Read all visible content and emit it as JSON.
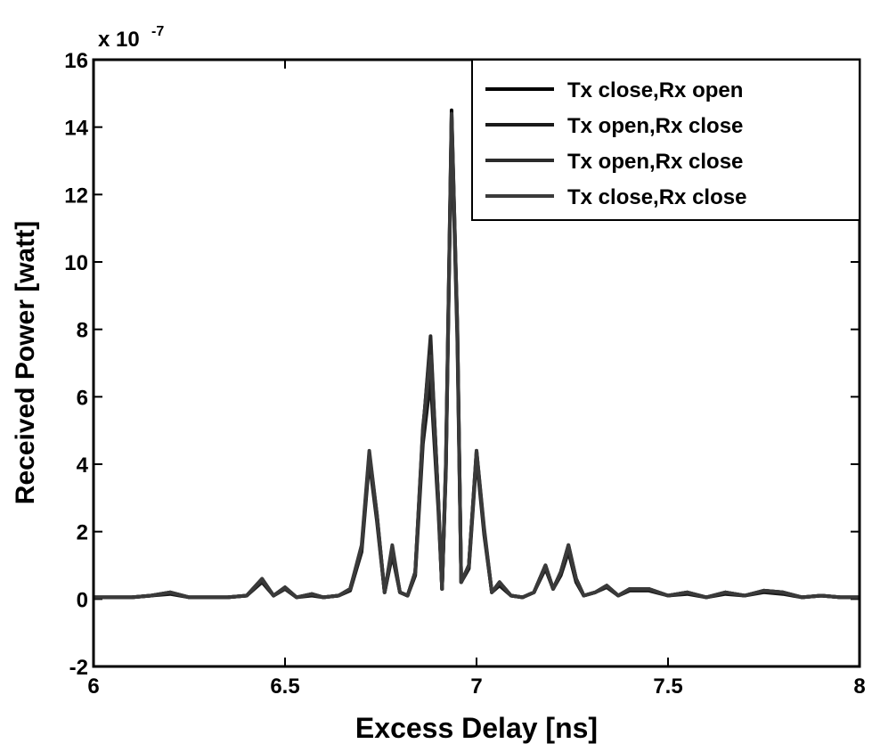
{
  "chart_data": {
    "type": "line",
    "xlabel": "Excess Delay [ns]",
    "ylabel": "Received Power [watt]",
    "y_multiplier": "x 10",
    "y_exponent": "-7",
    "xlim": [
      6,
      8
    ],
    "xticks": [
      6,
      6.5,
      7,
      7.5,
      8
    ],
    "ylim": [
      -2,
      16
    ],
    "yticks": [
      -2,
      0,
      2,
      4,
      6,
      8,
      10,
      12,
      14,
      16
    ],
    "legend": "upper right",
    "x": [
      6.0,
      6.1,
      6.15,
      6.2,
      6.25,
      6.3,
      6.35,
      6.4,
      6.44,
      6.47,
      6.5,
      6.53,
      6.57,
      6.6,
      6.64,
      6.67,
      6.7,
      6.72,
      6.74,
      6.76,
      6.78,
      6.8,
      6.82,
      6.84,
      6.86,
      6.88,
      6.9,
      6.91,
      6.92,
      6.935,
      6.95,
      6.96,
      6.98,
      7.0,
      7.02,
      7.04,
      7.06,
      7.09,
      7.12,
      7.15,
      7.18,
      7.2,
      7.22,
      7.24,
      7.26,
      7.28,
      7.31,
      7.34,
      7.37,
      7.4,
      7.45,
      7.5,
      7.55,
      7.6,
      7.65,
      7.7,
      7.75,
      7.8,
      7.85,
      7.9,
      7.95,
      8.0
    ],
    "series": [
      {
        "name": "Tx close,Rx open",
        "color": "#000000",
        "values": [
          0.05,
          0.05,
          0.1,
          0.2,
          0.05,
          0.05,
          0.05,
          0.1,
          0.6,
          0.1,
          0.35,
          0.05,
          0.15,
          0.05,
          0.1,
          0.3,
          1.5,
          4.3,
          2.5,
          0.2,
          1.5,
          0.2,
          0.1,
          0.8,
          5.0,
          7.6,
          3.0,
          0.3,
          4.0,
          14.5,
          8.0,
          0.5,
          1.0,
          4.4,
          2.0,
          0.2,
          0.5,
          0.1,
          0.05,
          0.2,
          1.0,
          0.3,
          0.8,
          1.6,
          0.6,
          0.1,
          0.2,
          0.4,
          0.1,
          0.3,
          0.3,
          0.1,
          0.2,
          0.05,
          0.2,
          0.1,
          0.25,
          0.2,
          0.05,
          0.1,
          0.05,
          0.05
        ]
      },
      {
        "name": "Tx open,Rx close",
        "color": "#1a1a1a",
        "values": [
          0.05,
          0.05,
          0.1,
          0.15,
          0.05,
          0.05,
          0.05,
          0.1,
          0.5,
          0.1,
          0.3,
          0.05,
          0.1,
          0.05,
          0.1,
          0.25,
          1.4,
          4.1,
          2.3,
          0.2,
          1.3,
          0.2,
          0.1,
          0.7,
          4.6,
          6.5,
          2.7,
          0.3,
          3.8,
          14.2,
          7.6,
          0.5,
          0.9,
          4.2,
          1.9,
          0.2,
          0.4,
          0.1,
          0.05,
          0.2,
          0.9,
          0.3,
          0.7,
          1.4,
          0.5,
          0.1,
          0.2,
          0.35,
          0.1,
          0.25,
          0.25,
          0.1,
          0.15,
          0.05,
          0.15,
          0.1,
          0.2,
          0.15,
          0.05,
          0.1,
          0.05,
          0.05
        ]
      },
      {
        "name": "Tx open,Rx close",
        "color": "#2b2b2b",
        "values": [
          0.05,
          0.05,
          0.1,
          0.2,
          0.05,
          0.05,
          0.05,
          0.1,
          0.55,
          0.1,
          0.3,
          0.05,
          0.15,
          0.05,
          0.1,
          0.3,
          1.5,
          4.2,
          2.4,
          0.2,
          1.4,
          0.2,
          0.1,
          0.8,
          4.9,
          7.8,
          2.9,
          0.3,
          3.9,
          14.3,
          7.9,
          0.5,
          1.0,
          4.3,
          2.0,
          0.2,
          0.5,
          0.1,
          0.05,
          0.2,
          1.0,
          0.3,
          0.8,
          1.5,
          0.6,
          0.1,
          0.2,
          0.4,
          0.1,
          0.3,
          0.3,
          0.1,
          0.2,
          0.05,
          0.2,
          0.1,
          0.25,
          0.2,
          0.05,
          0.1,
          0.05,
          0.05
        ]
      },
      {
        "name": "Tx close,Rx close",
        "color": "#3a3a3a",
        "values": [
          0.05,
          0.05,
          0.1,
          0.2,
          0.05,
          0.05,
          0.05,
          0.1,
          0.6,
          0.1,
          0.35,
          0.05,
          0.15,
          0.05,
          0.1,
          0.3,
          1.6,
          4.4,
          2.5,
          0.2,
          1.6,
          0.2,
          0.1,
          0.8,
          5.1,
          7.2,
          3.0,
          0.3,
          4.1,
          14.4,
          8.1,
          0.5,
          1.0,
          4.4,
          2.1,
          0.2,
          0.5,
          0.1,
          0.05,
          0.2,
          1.0,
          0.3,
          0.8,
          1.6,
          0.6,
          0.1,
          0.2,
          0.4,
          0.1,
          0.3,
          0.3,
          0.1,
          0.2,
          0.05,
          0.2,
          0.1,
          0.25,
          0.2,
          0.05,
          0.1,
          0.05,
          0.05
        ]
      }
    ]
  }
}
